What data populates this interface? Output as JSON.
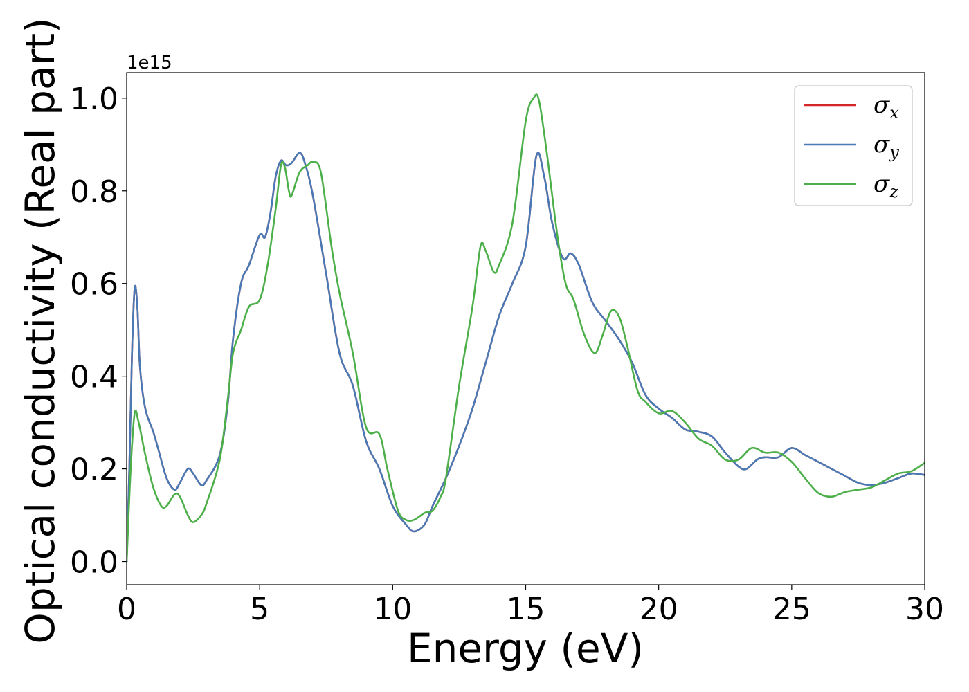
{
  "chart_data": {
    "type": "line",
    "title": "",
    "xlabel": "Energy (eV)",
    "ylabel": "Optical conductivity (Real part)",
    "y_offset_label": "1e15",
    "xlim": [
      0,
      30
    ],
    "ylim": [
      -0.05,
      1.055
    ],
    "x_ticks": [
      0,
      5,
      10,
      15,
      20,
      25,
      30
    ],
    "x_tick_labels": [
      "0",
      "5",
      "10",
      "15",
      "20",
      "25",
      "30"
    ],
    "y_ticks": [
      0.0,
      0.2,
      0.4,
      0.6,
      0.8,
      1.0
    ],
    "y_tick_labels": [
      "0.0",
      "0.2",
      "0.4",
      "0.6",
      "0.8",
      "1.0"
    ],
    "grid": false,
    "legend_position": "top-right",
    "series": [
      {
        "name": "σx",
        "symbol": "σ",
        "sub": "x",
        "color": "#d62728",
        "points": [
          [
            0,
            0
          ],
          [
            0.1,
            0.2
          ],
          [
            0.2,
            0.45
          ],
          [
            0.3,
            0.59
          ],
          [
            0.4,
            0.55
          ],
          [
            0.5,
            0.42
          ],
          [
            0.7,
            0.33
          ],
          [
            1.0,
            0.28
          ],
          [
            1.2,
            0.24
          ],
          [
            1.5,
            0.18
          ],
          [
            1.8,
            0.155
          ],
          [
            2.0,
            0.17
          ],
          [
            2.3,
            0.2
          ],
          [
            2.5,
            0.19
          ],
          [
            2.8,
            0.165
          ],
          [
            3.0,
            0.175
          ],
          [
            3.5,
            0.23
          ],
          [
            3.8,
            0.34
          ],
          [
            4.0,
            0.48
          ],
          [
            4.3,
            0.6
          ],
          [
            4.6,
            0.64
          ],
          [
            5.0,
            0.705
          ],
          [
            5.2,
            0.7
          ],
          [
            5.4,
            0.75
          ],
          [
            5.6,
            0.83
          ],
          [
            5.8,
            0.865
          ],
          [
            6.0,
            0.855
          ],
          [
            6.2,
            0.86
          ],
          [
            6.5,
            0.882
          ],
          [
            6.7,
            0.86
          ],
          [
            7.0,
            0.79
          ],
          [
            7.5,
            0.62
          ],
          [
            8.0,
            0.45
          ],
          [
            8.5,
            0.38
          ],
          [
            9.0,
            0.26
          ],
          [
            9.5,
            0.2
          ],
          [
            10.0,
            0.12
          ],
          [
            10.5,
            0.08
          ],
          [
            10.8,
            0.065
          ],
          [
            11.2,
            0.08
          ],
          [
            11.5,
            0.12
          ],
          [
            12.0,
            0.18
          ],
          [
            12.5,
            0.25
          ],
          [
            13.0,
            0.33
          ],
          [
            13.5,
            0.43
          ],
          [
            14.0,
            0.53
          ],
          [
            14.5,
            0.6
          ],
          [
            15.0,
            0.68
          ],
          [
            15.4,
            0.875
          ],
          [
            15.7,
            0.83
          ],
          [
            16.0,
            0.73
          ],
          [
            16.4,
            0.655
          ],
          [
            16.7,
            0.665
          ],
          [
            17.0,
            0.64
          ],
          [
            17.5,
            0.56
          ],
          [
            18.0,
            0.52
          ],
          [
            18.5,
            0.48
          ],
          [
            19.0,
            0.43
          ],
          [
            19.5,
            0.36
          ],
          [
            20.0,
            0.33
          ],
          [
            20.5,
            0.31
          ],
          [
            21.0,
            0.285
          ],
          [
            21.5,
            0.28
          ],
          [
            22.0,
            0.27
          ],
          [
            22.5,
            0.235
          ],
          [
            23.0,
            0.205
          ],
          [
            23.3,
            0.2
          ],
          [
            23.7,
            0.22
          ],
          [
            24.0,
            0.225
          ],
          [
            24.5,
            0.225
          ],
          [
            25.0,
            0.245
          ],
          [
            25.5,
            0.23
          ],
          [
            26.0,
            0.215
          ],
          [
            26.5,
            0.2
          ],
          [
            27.0,
            0.185
          ],
          [
            27.5,
            0.17
          ],
          [
            28.0,
            0.165
          ],
          [
            28.5,
            0.17
          ],
          [
            29.0,
            0.18
          ],
          [
            29.5,
            0.19
          ],
          [
            30.0,
            0.187
          ]
        ]
      },
      {
        "name": "σy",
        "symbol": "σ",
        "sub": "y",
        "color": "#4a7ab5",
        "points": [
          [
            0,
            0
          ],
          [
            0.1,
            0.2
          ],
          [
            0.2,
            0.45
          ],
          [
            0.3,
            0.59
          ],
          [
            0.4,
            0.55
          ],
          [
            0.5,
            0.42
          ],
          [
            0.7,
            0.33
          ],
          [
            1.0,
            0.28
          ],
          [
            1.2,
            0.24
          ],
          [
            1.5,
            0.18
          ],
          [
            1.8,
            0.155
          ],
          [
            2.0,
            0.17
          ],
          [
            2.3,
            0.2
          ],
          [
            2.5,
            0.19
          ],
          [
            2.8,
            0.165
          ],
          [
            3.0,
            0.175
          ],
          [
            3.5,
            0.23
          ],
          [
            3.8,
            0.34
          ],
          [
            4.0,
            0.48
          ],
          [
            4.3,
            0.6
          ],
          [
            4.6,
            0.64
          ],
          [
            5.0,
            0.705
          ],
          [
            5.2,
            0.7
          ],
          [
            5.4,
            0.75
          ],
          [
            5.6,
            0.83
          ],
          [
            5.8,
            0.865
          ],
          [
            6.0,
            0.855
          ],
          [
            6.2,
            0.86
          ],
          [
            6.5,
            0.882
          ],
          [
            6.7,
            0.86
          ],
          [
            7.0,
            0.79
          ],
          [
            7.5,
            0.62
          ],
          [
            8.0,
            0.45
          ],
          [
            8.5,
            0.38
          ],
          [
            9.0,
            0.26
          ],
          [
            9.5,
            0.2
          ],
          [
            10.0,
            0.12
          ],
          [
            10.5,
            0.08
          ],
          [
            10.8,
            0.065
          ],
          [
            11.2,
            0.08
          ],
          [
            11.5,
            0.12
          ],
          [
            12.0,
            0.18
          ],
          [
            12.5,
            0.25
          ],
          [
            13.0,
            0.33
          ],
          [
            13.5,
            0.43
          ],
          [
            14.0,
            0.53
          ],
          [
            14.5,
            0.6
          ],
          [
            15.0,
            0.68
          ],
          [
            15.4,
            0.875
          ],
          [
            15.7,
            0.83
          ],
          [
            16.0,
            0.73
          ],
          [
            16.4,
            0.655
          ],
          [
            16.7,
            0.665
          ],
          [
            17.0,
            0.64
          ],
          [
            17.5,
            0.56
          ],
          [
            18.0,
            0.52
          ],
          [
            18.5,
            0.48
          ],
          [
            19.0,
            0.43
          ],
          [
            19.5,
            0.36
          ],
          [
            20.0,
            0.33
          ],
          [
            20.5,
            0.31
          ],
          [
            21.0,
            0.285
          ],
          [
            21.5,
            0.28
          ],
          [
            22.0,
            0.27
          ],
          [
            22.5,
            0.235
          ],
          [
            23.0,
            0.205
          ],
          [
            23.3,
            0.2
          ],
          [
            23.7,
            0.22
          ],
          [
            24.0,
            0.225
          ],
          [
            24.5,
            0.225
          ],
          [
            25.0,
            0.245
          ],
          [
            25.5,
            0.23
          ],
          [
            26.0,
            0.215
          ],
          [
            26.5,
            0.2
          ],
          [
            27.0,
            0.185
          ],
          [
            27.5,
            0.17
          ],
          [
            28.0,
            0.165
          ],
          [
            28.5,
            0.17
          ],
          [
            29.0,
            0.18
          ],
          [
            29.5,
            0.19
          ],
          [
            30.0,
            0.187
          ]
        ]
      },
      {
        "name": "σz",
        "symbol": "σ",
        "sub": "z",
        "color": "#4daf4a",
        "points": [
          [
            0,
            0
          ],
          [
            0.15,
            0.2
          ],
          [
            0.3,
            0.32
          ],
          [
            0.45,
            0.3
          ],
          [
            0.7,
            0.23
          ],
          [
            1.0,
            0.16
          ],
          [
            1.3,
            0.12
          ],
          [
            1.5,
            0.12
          ],
          [
            1.8,
            0.145
          ],
          [
            2.0,
            0.14
          ],
          [
            2.3,
            0.1
          ],
          [
            2.5,
            0.085
          ],
          [
            2.8,
            0.1
          ],
          [
            3.0,
            0.125
          ],
          [
            3.5,
            0.22
          ],
          [
            3.8,
            0.35
          ],
          [
            4.0,
            0.45
          ],
          [
            4.3,
            0.5
          ],
          [
            4.6,
            0.55
          ],
          [
            5.0,
            0.565
          ],
          [
            5.3,
            0.64
          ],
          [
            5.6,
            0.76
          ],
          [
            5.8,
            0.855
          ],
          [
            5.95,
            0.85
          ],
          [
            6.1,
            0.8
          ],
          [
            6.2,
            0.79
          ],
          [
            6.5,
            0.84
          ],
          [
            6.8,
            0.855
          ],
          [
            7.0,
            0.862
          ],
          [
            7.3,
            0.84
          ],
          [
            7.7,
            0.68
          ],
          [
            8.0,
            0.58
          ],
          [
            8.5,
            0.45
          ],
          [
            9.0,
            0.29
          ],
          [
            9.5,
            0.275
          ],
          [
            9.8,
            0.2
          ],
          [
            10.2,
            0.11
          ],
          [
            10.5,
            0.09
          ],
          [
            10.8,
            0.09
          ],
          [
            11.2,
            0.105
          ],
          [
            11.5,
            0.11
          ],
          [
            11.8,
            0.14
          ],
          [
            12.0,
            0.18
          ],
          [
            12.5,
            0.38
          ],
          [
            13.0,
            0.55
          ],
          [
            13.3,
            0.68
          ],
          [
            13.5,
            0.67
          ],
          [
            13.8,
            0.625
          ],
          [
            14.0,
            0.64
          ],
          [
            14.5,
            0.73
          ],
          [
            15.0,
            0.95
          ],
          [
            15.3,
            1.0
          ],
          [
            15.5,
            0.995
          ],
          [
            15.8,
            0.88
          ],
          [
            16.2,
            0.7
          ],
          [
            16.5,
            0.6
          ],
          [
            16.8,
            0.565
          ],
          [
            17.2,
            0.49
          ],
          [
            17.6,
            0.45
          ],
          [
            17.9,
            0.49
          ],
          [
            18.2,
            0.54
          ],
          [
            18.5,
            0.53
          ],
          [
            18.8,
            0.47
          ],
          [
            19.2,
            0.37
          ],
          [
            19.5,
            0.345
          ],
          [
            20.0,
            0.32
          ],
          [
            20.5,
            0.325
          ],
          [
            21.0,
            0.3
          ],
          [
            21.5,
            0.265
          ],
          [
            22.0,
            0.25
          ],
          [
            22.5,
            0.22
          ],
          [
            23.0,
            0.22
          ],
          [
            23.5,
            0.245
          ],
          [
            24.0,
            0.235
          ],
          [
            24.5,
            0.235
          ],
          [
            25.0,
            0.215
          ],
          [
            25.5,
            0.18
          ],
          [
            26.0,
            0.148
          ],
          [
            26.5,
            0.14
          ],
          [
            27.0,
            0.15
          ],
          [
            27.5,
            0.155
          ],
          [
            28.0,
            0.16
          ],
          [
            28.5,
            0.175
          ],
          [
            29.0,
            0.19
          ],
          [
            29.5,
            0.195
          ],
          [
            30.0,
            0.213
          ]
        ]
      }
    ]
  }
}
